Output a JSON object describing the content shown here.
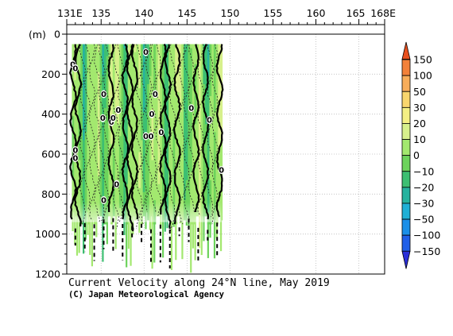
{
  "chart_data": {
    "type": "heatmap",
    "title": "Current Velocity along 24°N line, May 2019",
    "credit": "(C) Japan Meteorological Agency",
    "x_ticks": [
      "131E",
      "135",
      "140",
      "145",
      "150",
      "155",
      "160",
      "165",
      "168E"
    ],
    "x_tick_values": [
      131,
      135,
      140,
      145,
      150,
      155,
      160,
      165,
      168
    ],
    "xlim": [
      131,
      168
    ],
    "ylabel": "(m)",
    "y_ticks": [
      "0",
      "200",
      "400",
      "600",
      "800",
      "1000",
      "1200"
    ],
    "y_tick_values": [
      0,
      200,
      400,
      600,
      800,
      1000,
      1200
    ],
    "ylim": [
      0,
      1200
    ],
    "y_inverted": true,
    "grid": true,
    "data_extent": {
      "lon": [
        131,
        149
      ],
      "depth_top": 50,
      "depth_typical_bottom": 900
    },
    "colorbar": {
      "labels": [
        "150",
        "100",
        "50",
        "30",
        "20",
        "10",
        "0",
        "−10",
        "−20",
        "−30",
        "−50",
        "−100",
        "−150"
      ],
      "colors": [
        "#e8501e",
        "#f2813a",
        "#f8ad5a",
        "#f9d66e",
        "#f4ef84",
        "#d7f08c",
        "#a3e86f",
        "#6dd35c",
        "#3dbf72",
        "#26b39f",
        "#1fb0d6",
        "#1a8fe8",
        "#1f5fe8",
        "#2a2fd8"
      ]
    },
    "zero_contour_labels": [
      {
        "lon": 131.7,
        "depth": 150
      },
      {
        "lon": 132.0,
        "depth": 170
      },
      {
        "lon": 135.3,
        "depth": 300
      },
      {
        "lon": 135.2,
        "depth": 420
      },
      {
        "lon": 136.2,
        "depth": 440
      },
      {
        "lon": 136.4,
        "depth": 420
      },
      {
        "lon": 137.0,
        "depth": 380
      },
      {
        "lon": 140.2,
        "depth": 90
      },
      {
        "lon": 141.3,
        "depth": 300
      },
      {
        "lon": 140.9,
        "depth": 400
      },
      {
        "lon": 140.2,
        "depth": 510
      },
      {
        "lon": 140.8,
        "depth": 510
      },
      {
        "lon": 142.0,
        "depth": 490
      },
      {
        "lon": 145.5,
        "depth": 370
      },
      {
        "lon": 147.6,
        "depth": 430
      },
      {
        "lon": 132.0,
        "depth": 580
      },
      {
        "lon": 132.0,
        "depth": 620
      },
      {
        "lon": 136.8,
        "depth": 750
      },
      {
        "lon": 135.3,
        "depth": 830
      },
      {
        "lon": 149.0,
        "depth": 680
      }
    ]
  }
}
